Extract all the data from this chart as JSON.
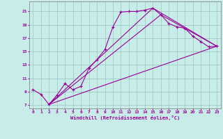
{
  "xlabel": "Windchill (Refroidissement éolien,°C)",
  "xlim": [
    -0.5,
    23.5
  ],
  "ylim": [
    6.5,
    22.5
  ],
  "yticks": [
    7,
    9,
    11,
    13,
    15,
    17,
    19,
    21
  ],
  "xticks": [
    0,
    1,
    2,
    3,
    4,
    5,
    6,
    7,
    8,
    9,
    10,
    11,
    12,
    13,
    14,
    15,
    16,
    17,
    18,
    19,
    20,
    21,
    22,
    23
  ],
  "bg_color": "#c8ece8",
  "grid_color": "#a0ccc8",
  "line_color": "#990099",
  "lines": [
    [
      0,
      9.3
    ],
    [
      1,
      8.6
    ],
    [
      2,
      7.1
    ],
    [
      3,
      8.5
    ],
    [
      4,
      10.2
    ],
    [
      5,
      9.3
    ],
    [
      6,
      9.8
    ],
    [
      7,
      12.5
    ],
    [
      8,
      13.8
    ],
    [
      9,
      15.3
    ],
    [
      10,
      18.7
    ],
    [
      11,
      20.9
    ],
    [
      12,
      21.0
    ],
    [
      13,
      21.0
    ],
    [
      14,
      21.2
    ],
    [
      15,
      21.5
    ],
    [
      16,
      20.5
    ],
    [
      17,
      19.2
    ],
    [
      18,
      18.7
    ],
    [
      19,
      18.5
    ],
    [
      20,
      17.3
    ],
    [
      21,
      16.5
    ],
    [
      22,
      15.7
    ],
    [
      23,
      15.8
    ]
  ],
  "line2": [
    [
      2,
      7.1
    ],
    [
      23,
      15.8
    ]
  ],
  "line3": [
    [
      2,
      7.1
    ],
    [
      15,
      21.5
    ],
    [
      23,
      15.8
    ]
  ],
  "line4": [
    [
      2,
      7.1
    ],
    [
      16,
      20.5
    ],
    [
      23,
      15.8
    ]
  ]
}
